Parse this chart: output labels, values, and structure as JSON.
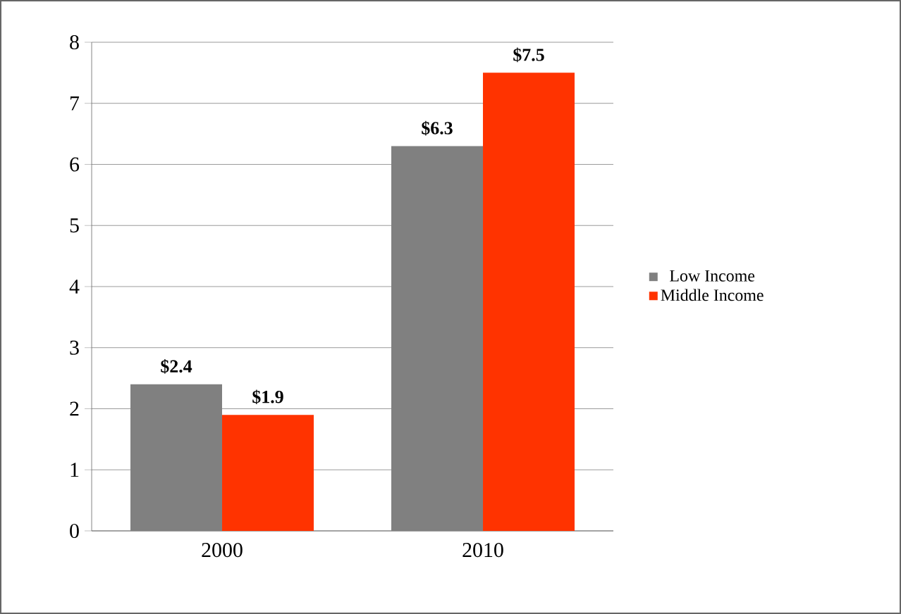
{
  "chart_data": {
    "type": "bar",
    "categories": [
      "2000",
      "2010"
    ],
    "series": [
      {
        "name": "Low Income",
        "color": "#808080",
        "values": [
          2.4,
          6.3
        ],
        "value_labels": [
          "$2.4",
          "$6.3"
        ]
      },
      {
        "name": "Middle Income",
        "color": "#ff3300",
        "values": [
          1.9,
          7.5
        ],
        "value_labels": [
          "$1.9",
          "$7.5"
        ]
      }
    ],
    "ylim": [
      0,
      8
    ],
    "yticks": [
      0,
      1,
      2,
      3,
      4,
      5,
      6,
      7,
      8
    ],
    "grid": "y",
    "legend": "right"
  }
}
